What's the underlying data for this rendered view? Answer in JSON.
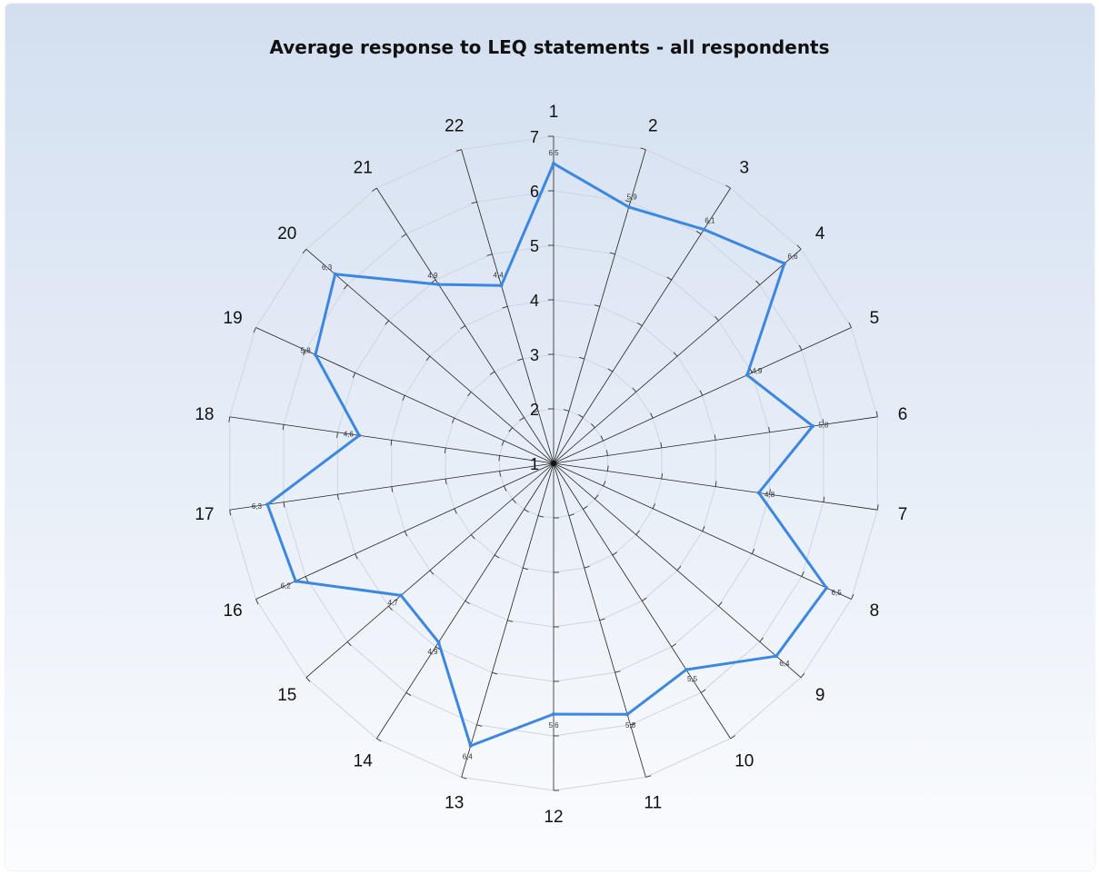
{
  "chart_data": {
    "type": "radar",
    "title": "Average response to LEQ statements - all respondents",
    "categories": [
      "1",
      "2",
      "3",
      "4",
      "5",
      "6",
      "7",
      "8",
      "9",
      "10",
      "11",
      "12",
      "13",
      "14",
      "15",
      "16",
      "17",
      "18",
      "19",
      "20",
      "21",
      "22"
    ],
    "radial_ticks": [
      "1",
      "2",
      "3",
      "4",
      "5",
      "6",
      "7"
    ],
    "rlim": [
      1,
      7
    ],
    "series": [
      {
        "values": [
          6.5,
          5.9,
          6.1,
          6.6,
          4.9,
          5.8,
          4.8,
          6.5,
          6.4,
          5.5,
          5.8,
          5.6,
          6.4,
          4.9,
          4.7,
          6.2,
          6.3,
          4.6,
          5.8,
          6.3,
          4.9,
          4.4
        ],
        "value_labels": [
          "6,5",
          "5,9",
          "6,1",
          "6,6",
          "4,9",
          "5,8",
          "4,8",
          "6,5",
          "6,4",
          "5,5",
          "5,8",
          "5,6",
          "6,4",
          "4,9",
          "4,7",
          "6,2",
          "6,3",
          "4,6",
          "5,8",
          "6,3",
          "4,9",
          "4,4"
        ]
      }
    ],
    "grid": true,
    "colors": {
      "series": "#3c87e0",
      "spokes": "#222222",
      "rings": "#cfd5de"
    }
  }
}
